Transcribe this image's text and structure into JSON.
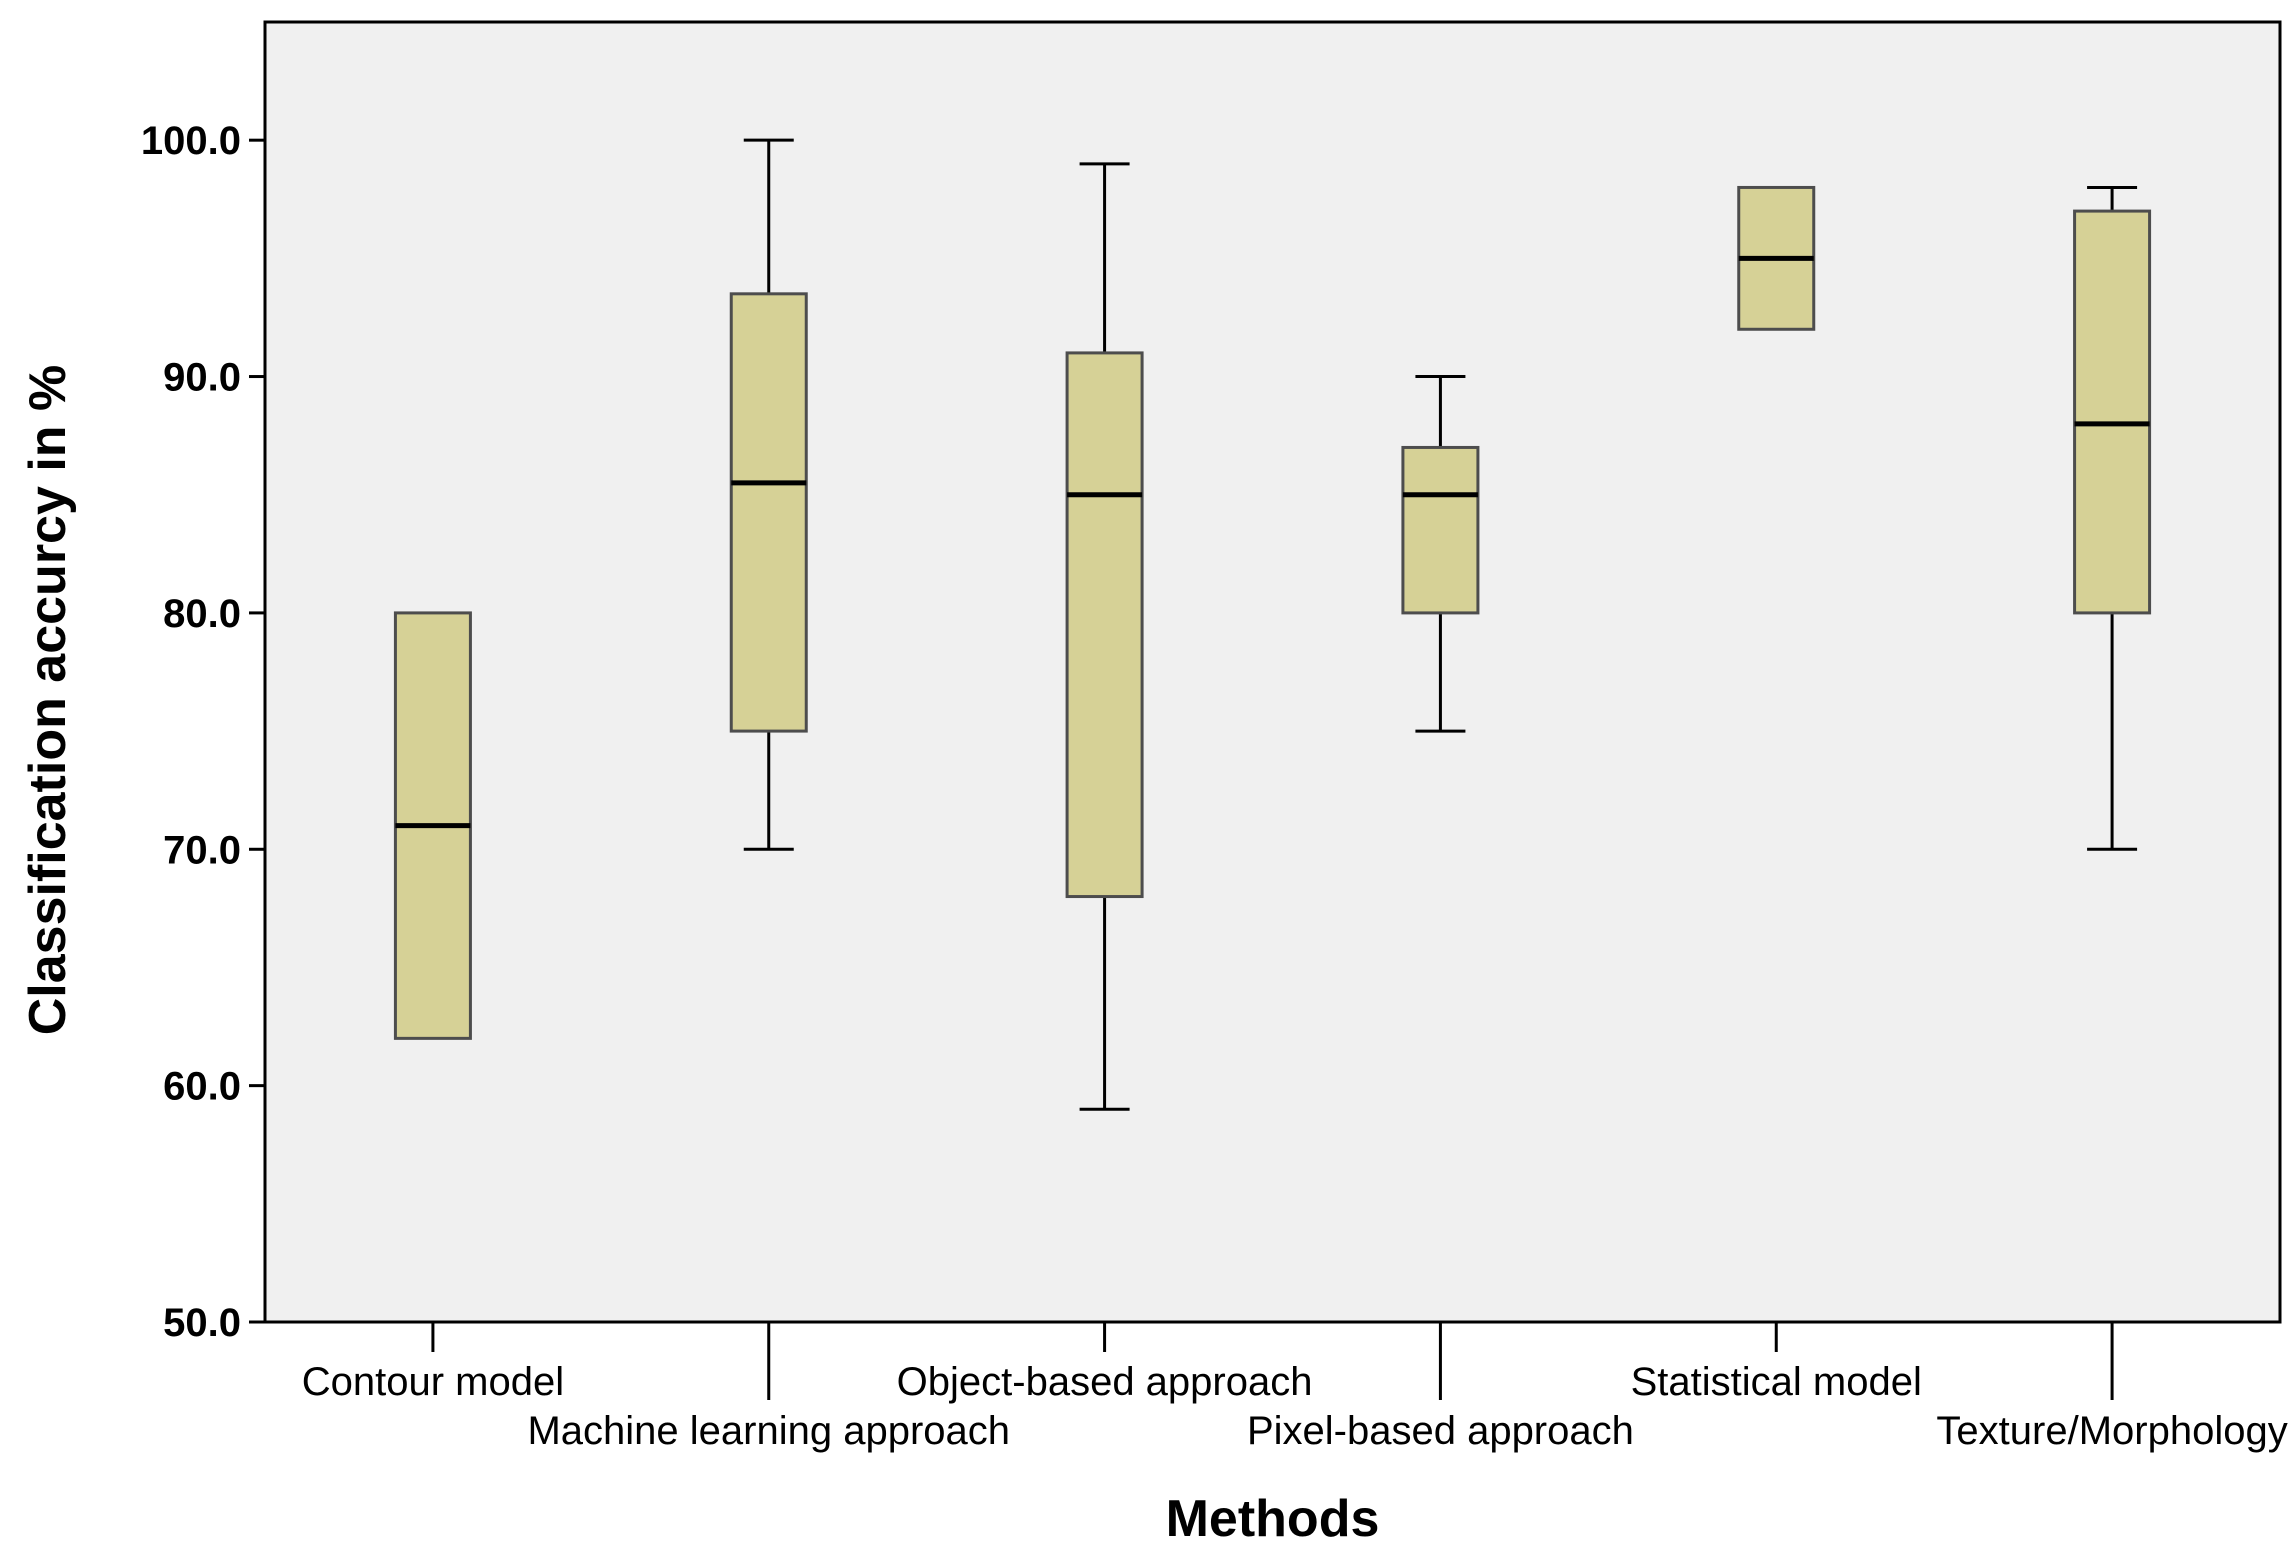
{
  "chart_data": {
    "type": "box",
    "title": "",
    "xlabel": "Methods",
    "ylabel": "Classification accurcy in %",
    "ylim": [
      50,
      105
    ],
    "yticks": [
      "50.0",
      "60.0",
      "70.0",
      "80.0",
      "90.0",
      "100.0"
    ],
    "categories": [
      "Contour model",
      "Machine learning approach",
      "Object-based approach",
      "Pixel-based approach",
      "Statistical model",
      "Texture/Morphology"
    ],
    "boxes": [
      {
        "min": 62,
        "q1": 62,
        "median": 71,
        "q3": 80,
        "max": 80
      },
      {
        "min": 70,
        "q1": 75,
        "median": 85.5,
        "q3": 93.5,
        "max": 100
      },
      {
        "min": 59,
        "q1": 68,
        "median": 85,
        "q3": 91,
        "max": 99
      },
      {
        "min": 75,
        "q1": 80,
        "median": 85,
        "q3": 87,
        "max": 90
      },
      {
        "min": 92,
        "q1": 92,
        "median": 95,
        "q3": 98,
        "max": 98
      },
      {
        "min": 70,
        "q1": 80,
        "median": 88,
        "q3": 97,
        "max": 98
      }
    ],
    "grid": false,
    "legend": "none",
    "colors": {
      "plot_background": "#f0f0f0",
      "box_fill": "#d6d196",
      "box_stroke": "#4d4d4d",
      "median": "#000000"
    }
  }
}
